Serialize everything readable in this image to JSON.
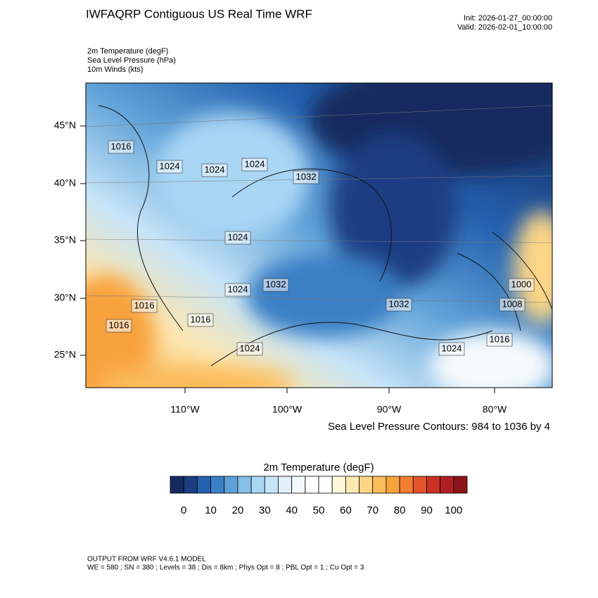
{
  "header": {
    "title": "IWFAQRP Contiguous US Real Time WRF",
    "init": "Init: 2026-01-27_00:00:00",
    "valid": "Valid: 2026-02-01_10:00:00"
  },
  "fields": [
    "2m Temperature   (degF)",
    "Sea Level Pressure   (hPa)",
    "10m Winds   (kts)"
  ],
  "lat_labels": [
    "45°N",
    "40°N",
    "35°N",
    "30°N",
    "25°N"
  ],
  "lon_labels": [
    "110°W",
    "100°W",
    "90°W",
    "80°W"
  ],
  "isobar_labels": [
    "1016",
    "1024",
    "1024",
    "1024",
    "1032",
    "1024",
    "1024",
    "1032",
    "1016",
    "1016",
    "1016",
    "1024",
    "1032",
    "1024",
    "1016",
    "1000",
    "1008"
  ],
  "contour_note": "Sea Level Pressure Contours: 984 to 1036 by 4",
  "colorbar": {
    "title": "2m Temperature  (degF)",
    "colors": [
      "#152a5e",
      "#1c3d82",
      "#2461ae",
      "#3b7fc4",
      "#5fa2d8",
      "#86bfe8",
      "#a9d6f5",
      "#c6e4f8",
      "#e1f1fb",
      "#f5fafd",
      "#ffffff",
      "#ffffff",
      "#fff7d9",
      "#fde9b0",
      "#fcd586",
      "#fbbc5a",
      "#f8a23e",
      "#f27e32",
      "#e5542b",
      "#cc3125",
      "#b01e23",
      "#8b1519"
    ],
    "labels": [
      0,
      10,
      20,
      30,
      40,
      50,
      60,
      70,
      80,
      90,
      100
    ]
  },
  "footer": [
    "OUTPUT FROM WRF V4.6.1 MODEL",
    "WE = 580 ; SN = 380 ; Levels = 38 ; Dis = 8km ; Phys Opt = 8 ; PBL Opt = 1 ; Cu Opt = 3"
  ]
}
